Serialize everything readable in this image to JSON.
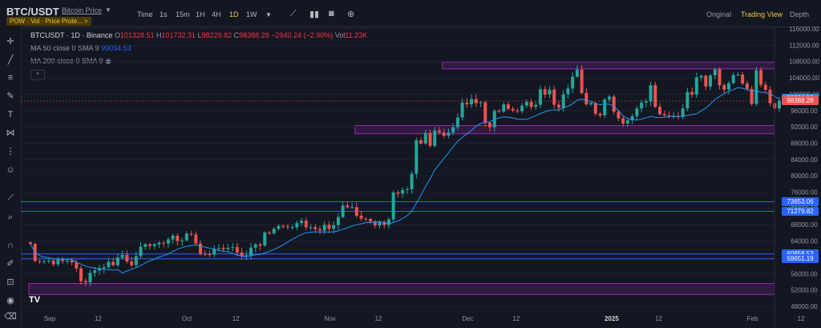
{
  "header": {
    "symbol": "BTC/USDT",
    "subtitle": "Bitcoin Price",
    "badge": "POW · Vol · Price Prote... >",
    "timeframes": [
      "Time",
      "1s",
      "15m",
      "1H",
      "4H",
      "1D",
      "1W"
    ],
    "active_timeframe": "1D",
    "views": [
      "Original",
      "Trading View",
      "Depth"
    ],
    "active_view": "Trading View"
  },
  "legend": {
    "title": "BTCUSDT · 1D · Binance",
    "o_label": "O",
    "o": "101328.51",
    "h_label": "H",
    "h": "101732.31",
    "l_label": "L",
    "l": "98229.82",
    "c_label": "C",
    "c": "98388.28",
    "change": "−2940.24 (−2.90%)",
    "vol_label": "Vol",
    "vol": "11.23K",
    "ma50_label": "MA 50 close 0 SMA 9",
    "ma50_value": "99034.53",
    "ma200_label": "MA 200 close 0 SMA 9"
  },
  "colors": {
    "up": "#26a69a",
    "down": "#ef5350",
    "ma": "#2196f3",
    "zone_border": "#9c27b0",
    "zone_fill": "#9c27b0",
    "hline": "#2962ff",
    "accent": "#f5c542",
    "bg": "#131722"
  },
  "chart_data": {
    "type": "candlestick",
    "symbol": "BTCUSDT",
    "interval": "1D",
    "exchange": "Binance",
    "y_ticks": [
      116000,
      112000,
      108000,
      104000,
      100000,
      96000,
      92000,
      88000,
      84000,
      80000,
      76000,
      72000,
      68000,
      64000,
      60000,
      56000,
      52000,
      48000
    ],
    "x_ticks": [
      "Sep",
      "12",
      "Oct",
      "12",
      "Nov",
      "12",
      "Dec",
      "12",
      "2025",
      "12",
      "Feb",
      "12"
    ],
    "price_labels": [
      {
        "value": 99034.53,
        "kind": "ma"
      },
      {
        "value": 98388.28,
        "kind": "last"
      },
      {
        "value": 73653.06,
        "kind": "hline"
      },
      {
        "value": 71279.82,
        "kind": "hline"
      },
      {
        "value": 60858.53,
        "kind": "hline"
      },
      {
        "value": 59651.19,
        "kind": "hline"
      }
    ],
    "hlines": [
      73653.06,
      71279.82,
      60858.53,
      59651.19
    ],
    "zones": [
      {
        "from": 106200,
        "to": 107800,
        "start": "2024-11-26",
        "end": "2025-02-07"
      },
      {
        "from": 90300,
        "to": 92300,
        "start": "2024-11-07",
        "end": "2025-02-07"
      },
      {
        "from": 50900,
        "to": 53600,
        "start": "2024-08-28",
        "end": "2025-02-07"
      }
    ],
    "closes": [
      63300,
      59100,
      58900,
      59000,
      59200,
      58300,
      59500,
      59100,
      59200,
      58800,
      57300,
      54200,
      53900,
      56200,
      56800,
      57300,
      57600,
      58900,
      58100,
      59900,
      60600,
      59000,
      58100,
      60300,
      62600,
      63200,
      62800,
      63200,
      63600,
      63400,
      64400,
      65300,
      64000,
      64200,
      65800,
      65600,
      63400,
      60900,
      60800,
      60700,
      62100,
      62300,
      62000,
      62300,
      62500,
      61200,
      60300,
      60500,
      62400,
      63200,
      62900,
      66100,
      65900,
      67000,
      67700,
      67600,
      67400,
      67400,
      68400,
      69000,
      67400,
      67400,
      66900,
      66600,
      68000,
      67000,
      67900,
      69900,
      72700,
      72300,
      72300,
      70200,
      69500,
      69400,
      68800,
      67800,
      68700,
      67900,
      69300,
      75900,
      75600,
      76500,
      76700,
      80500,
      88700,
      87900,
      90500,
      87300,
      91100,
      90600,
      89800,
      90600,
      91900,
      94300,
      97900,
      97500,
      98800,
      97800,
      98000,
      93000,
      91900,
      95900,
      95700,
      97500,
      96400,
      96000,
      95800,
      97200,
      98100,
      96900,
      97400,
      101200,
      99900,
      101100,
      97400,
      96700,
      100000,
      101400,
      104300,
      106000,
      100300,
      97500,
      97800,
      95200,
      94800,
      98700,
      99400,
      95700,
      94100,
      92800,
      93600,
      94600,
      96500,
      97900,
      98200,
      102200,
      96900,
      95100,
      94800,
      94500,
      94600,
      94400,
      96500,
      100500,
      99900,
      104100,
      104500,
      101900,
      104600,
      106100,
      102200,
      101100,
      102700,
      104700,
      104800,
      102600,
      101300,
      97600,
      105900,
      102300,
      101100,
      97800,
      96500,
      98388
    ]
  },
  "watermark": "TV"
}
